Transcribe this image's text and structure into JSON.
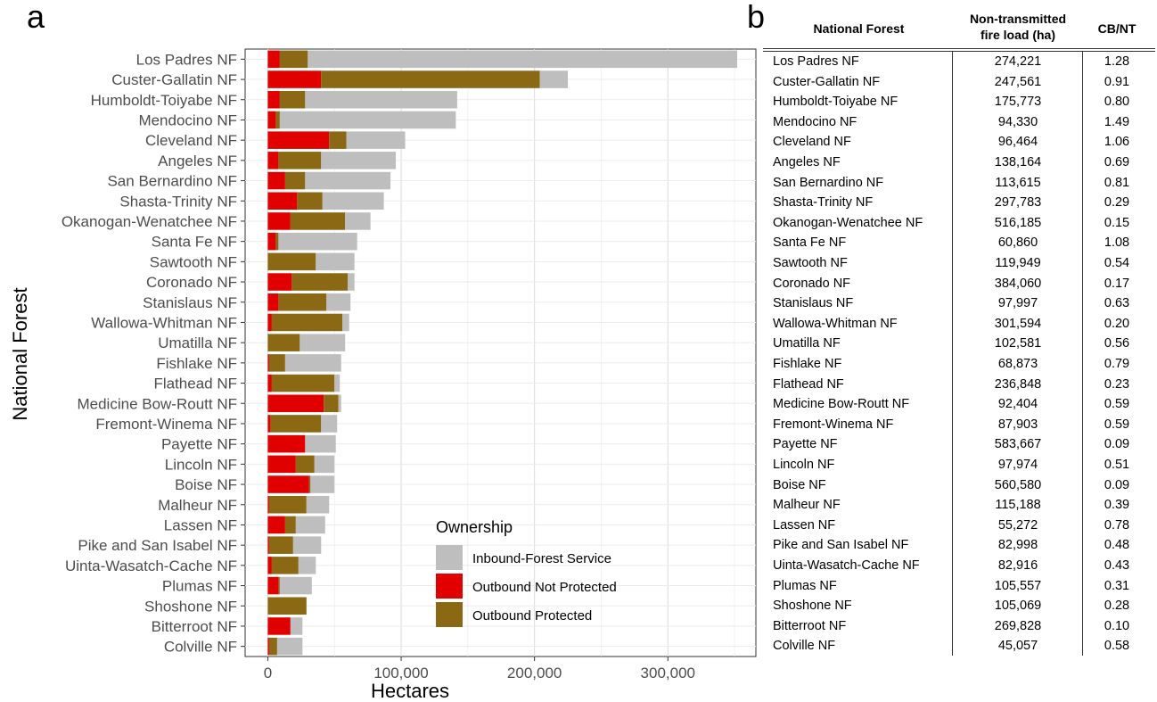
{
  "panel_a_letter": "a",
  "panel_b_letter": "b",
  "chart_data": {
    "type": "bar",
    "orientation": "horizontal",
    "stacked": true,
    "xlabel": "Hectares",
    "ylabel": "National Forest",
    "xlim": [
      -17000,
      366000
    ],
    "x_ticks": [
      0,
      100000,
      200000,
      300000
    ],
    "x_tick_labels": [
      "0",
      "100,000",
      "200,000",
      "300,000"
    ],
    "grid": true,
    "legend": {
      "title": "Ownership",
      "position": "bottom-right",
      "entries": [
        "Inbound-Forest Service",
        "Outbound Not Protected",
        "Outbound Protected"
      ]
    },
    "categories": [
      "Los Padres NF",
      "Custer-Gallatin NF",
      "Humboldt-Toiyabe NF",
      "Mendocino NF",
      "Cleveland NF",
      "Angeles NF",
      "San Bernardino NF",
      "Shasta-Trinity NF",
      "Okanogan-Wenatchee NF",
      "Santa Fe NF",
      "Sawtooth NF",
      "Coronado NF",
      "Stanislaus NF",
      "Wallowa-Whitman NF",
      "Umatilla NF",
      "Fishlake NF",
      "Flathead NF",
      "Medicine Bow-Routt NF",
      "Fremont-Winema NF",
      "Payette NF",
      "Lincoln NF",
      "Boise NF",
      "Malheur NF",
      "Lassen NF",
      "Pike and San Isabel NF",
      "Uinta-Wasatch-Cache NF",
      "Plumas NF",
      "Shoshone NF",
      "Bitterroot NF",
      "Colville NF"
    ],
    "series": [
      {
        "name": "Outbound Not Protected",
        "color": "#E00000",
        "values": [
          9000,
          40000,
          9000,
          6000,
          46000,
          8000,
          13000,
          22000,
          17000,
          6000,
          0,
          18000,
          8000,
          3000,
          0,
          1000,
          3000,
          42000,
          2000,
          28000,
          21000,
          31000,
          1000,
          13000,
          1000,
          3000,
          8000,
          0,
          17000,
          1000
        ]
      },
      {
        "name": "Outbound Protected",
        "color": "#8B6914",
        "values": [
          21000,
          164000,
          19000,
          3000,
          13000,
          32000,
          15000,
          19000,
          41000,
          2000,
          36000,
          42000,
          36000,
          53000,
          24000,
          12000,
          47000,
          11000,
          38000,
          0,
          14000,
          1000,
          28000,
          8000,
          18000,
          20000,
          1000,
          29000,
          0,
          6000
        ]
      },
      {
        "name": "Inbound-Forest Service",
        "color": "#BEBEBE",
        "values": [
          322000,
          21000,
          114000,
          132000,
          44000,
          56000,
          64000,
          46000,
          19000,
          59000,
          29000,
          5000,
          18000,
          5000,
          34000,
          42000,
          4000,
          2000,
          12000,
          23000,
          15000,
          18000,
          17000,
          22000,
          21000,
          13000,
          24000,
          0,
          9000,
          19000
        ]
      }
    ]
  },
  "table": {
    "headers": {
      "forest": "National Forest",
      "load_line1": "Non-transmitted",
      "load_line2": "fire load (ha)",
      "ratio": "CB/NT"
    },
    "rows": [
      {
        "forest": "Los Padres NF",
        "load": "274,221",
        "ratio": "1.28"
      },
      {
        "forest": "Custer-Gallatin NF",
        "load": "247,561",
        "ratio": "0.91"
      },
      {
        "forest": "Humboldt-Toiyabe NF",
        "load": "175,773",
        "ratio": "0.80"
      },
      {
        "forest": "Mendocino NF",
        "load": "94,330",
        "ratio": "1.49"
      },
      {
        "forest": "Cleveland NF",
        "load": "96,464",
        "ratio": "1.06"
      },
      {
        "forest": "Angeles NF",
        "load": "138,164",
        "ratio": "0.69"
      },
      {
        "forest": "San Bernardino NF",
        "load": "113,615",
        "ratio": "0.81"
      },
      {
        "forest": "Shasta-Trinity NF",
        "load": "297,783",
        "ratio": "0.29"
      },
      {
        "forest": "Okanogan-Wenatchee NF",
        "load": "516,185",
        "ratio": "0.15"
      },
      {
        "forest": "Santa Fe NF",
        "load": "60,860",
        "ratio": "1.08"
      },
      {
        "forest": "Sawtooth NF",
        "load": "119,949",
        "ratio": "0.54"
      },
      {
        "forest": "Coronado NF",
        "load": "384,060",
        "ratio": "0.17"
      },
      {
        "forest": "Stanislaus NF",
        "load": "97,997",
        "ratio": "0.63"
      },
      {
        "forest": "Wallowa-Whitman NF",
        "load": "301,594",
        "ratio": "0.20"
      },
      {
        "forest": "Umatilla NF",
        "load": "102,581",
        "ratio": "0.56"
      },
      {
        "forest": "Fishlake NF",
        "load": "68,873",
        "ratio": "0.79"
      },
      {
        "forest": "Flathead NF",
        "load": "236,848",
        "ratio": "0.23"
      },
      {
        "forest": "Medicine Bow-Routt NF",
        "load": "92,404",
        "ratio": "0.59"
      },
      {
        "forest": "Fremont-Winema NF",
        "load": "87,903",
        "ratio": "0.59"
      },
      {
        "forest": "Payette NF",
        "load": "583,667",
        "ratio": "0.09"
      },
      {
        "forest": "Lincoln NF",
        "load": "97,974",
        "ratio": "0.51"
      },
      {
        "forest": "Boise NF",
        "load": "560,580",
        "ratio": "0.09"
      },
      {
        "forest": "Malheur NF",
        "load": "115,188",
        "ratio": "0.39"
      },
      {
        "forest": "Lassen NF",
        "load": "55,272",
        "ratio": "0.78"
      },
      {
        "forest": "Pike and San Isabel NF",
        "load": "82,998",
        "ratio": "0.48"
      },
      {
        "forest": "Uinta-Wasatch-Cache NF",
        "load": "82,916",
        "ratio": "0.43"
      },
      {
        "forest": "Plumas NF",
        "load": "105,557",
        "ratio": "0.31"
      },
      {
        "forest": "Shoshone NF",
        "load": "105,069",
        "ratio": "0.28"
      },
      {
        "forest": "Bitterroot NF",
        "load": "269,828",
        "ratio": "0.10"
      },
      {
        "forest": "Colville NF",
        "load": "45,057",
        "ratio": "0.58"
      }
    ]
  }
}
